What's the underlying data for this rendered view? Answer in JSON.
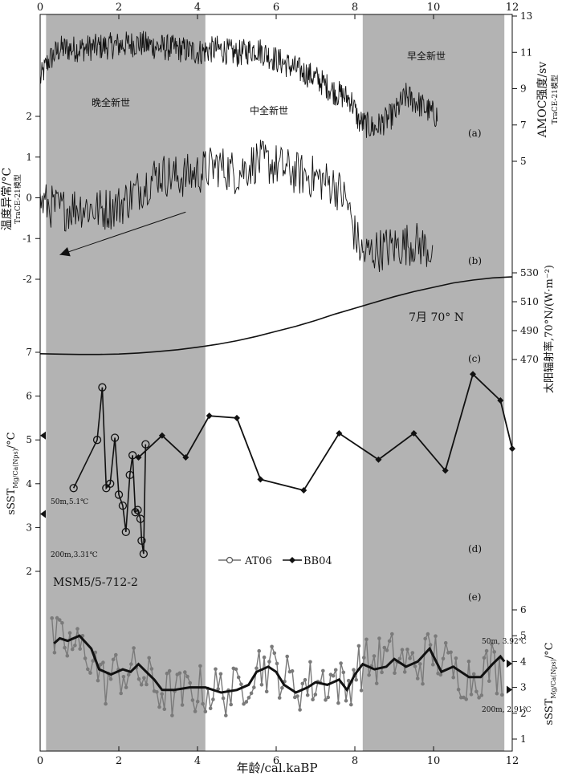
{
  "chart_data": {
    "type": "line",
    "x_axis": {
      "label": "年龄/cal.kaBP",
      "range": [
        0,
        12
      ],
      "ticks": [
        "0",
        "2",
        "4",
        "6",
        "8",
        "10",
        "12"
      ]
    },
    "periods": [
      {
        "label": "晚全新世",
        "range": [
          0.15,
          4.2
        ],
        "shaded": true
      },
      {
        "label": "中全新世",
        "range": [
          4.2,
          8.2
        ],
        "shaded": false
      },
      {
        "label": "早全新世",
        "range": [
          8.2,
          11.8
        ],
        "shaded": true
      }
    ],
    "panels": [
      {
        "id": "a",
        "tag": "(a)",
        "axis_side": "right",
        "ylabel": "AMOC强度/sv",
        "ylabel_sub": "TraCE-21模型",
        "ylim": [
          5,
          13
        ],
        "yticks": [
          "5",
          "7",
          "9",
          "11",
          "13"
        ],
        "series": [
          {
            "name": "",
            "anchors": [
              [
                0,
                9.5
              ],
              [
                0.2,
                10.5
              ],
              [
                0.5,
                11.2
              ],
              [
                1,
                11.2
              ],
              [
                1.5,
                11.3
              ],
              [
                2,
                11.4
              ],
              [
                2.5,
                11.5
              ],
              [
                3,
                11.3
              ],
              [
                3.5,
                11.2
              ],
              [
                4,
                11.0
              ],
              [
                4.5,
                11.2
              ],
              [
                5,
                10.9
              ],
              [
                5.5,
                11.2
              ],
              [
                6,
                10.6
              ],
              [
                6.5,
                10.1
              ],
              [
                7,
                9.6
              ],
              [
                7.5,
                8.8
              ],
              [
                7.9,
                8.4
              ],
              [
                8.1,
                7.2
              ],
              [
                8.5,
                6.8
              ],
              [
                9,
                7.6
              ],
              [
                9.3,
                8.6
              ],
              [
                9.6,
                8.2
              ],
              [
                10,
                7.6
              ],
              [
                10.1,
                7.5
              ]
            ]
          }
        ]
      },
      {
        "id": "b",
        "tag": "(b)",
        "axis_side": "left",
        "ylabel": "温度异常/°C",
        "ylabel_sub": "TraCE-21模型",
        "ylim": [
          -2,
          2
        ],
        "yticks": [
          "-2",
          "-1",
          "0",
          "1",
          "2"
        ],
        "series": [
          {
            "name": "",
            "anchors": [
              [
                0,
                -0.1
              ],
              [
                0.5,
                -0.3
              ],
              [
                1,
                -0.2
              ],
              [
                1.5,
                -0.3
              ],
              [
                2,
                -0.2
              ],
              [
                2.5,
                0.2
              ],
              [
                3,
                0.6
              ],
              [
                3.5,
                0.5
              ],
              [
                4,
                0.6
              ],
              [
                4.5,
                0.8
              ],
              [
                5,
                0.6
              ],
              [
                5.5,
                0.9
              ],
              [
                6,
                0.8
              ],
              [
                6.5,
                0.6
              ],
              [
                7,
                0.5
              ],
              [
                7.5,
                0.3
              ],
              [
                7.8,
                -0.1
              ],
              [
                8.0,
                -0.9
              ],
              [
                8.2,
                -1.4
              ],
              [
                8.5,
                -1.3
              ],
              [
                9,
                -1.2
              ],
              [
                9.5,
                -1.1
              ],
              [
                10,
                -1.3
              ]
            ]
          }
        ],
        "trend_arrow": [
          [
            3.7,
            -0.35
          ],
          [
            0.5,
            -1.4
          ]
        ]
      },
      {
        "id": "c",
        "tag": "(c)",
        "axis_side": "right",
        "ylabel": "太阳辐射率,70°N/(W·m⁻²)",
        "annotation": "7月 70° N",
        "ylim": [
          470,
          530
        ],
        "yticks": [
          "470",
          "490",
          "510",
          "530"
        ],
        "series": [
          {
            "name": "",
            "points": [
              [
                0,
                474
              ],
              [
                0.5,
                473.7
              ],
              [
                1,
                473.5
              ],
              [
                1.5,
                473.5
              ],
              [
                2,
                473.8
              ],
              [
                2.5,
                474.5
              ],
              [
                3,
                475.5
              ],
              [
                3.5,
                476.8
              ],
              [
                4,
                478.5
              ],
              [
                4.5,
                480.5
              ],
              [
                5,
                483
              ],
              [
                5.5,
                486
              ],
              [
                6,
                489.5
              ],
              [
                6.5,
                493
              ],
              [
                7,
                497
              ],
              [
                7.5,
                501.5
              ],
              [
                8,
                505.5
              ],
              [
                8.5,
                509.5
              ],
              [
                9,
                513.5
              ],
              [
                9.5,
                517
              ],
              [
                10,
                520
              ],
              [
                10.5,
                523
              ],
              [
                11,
                525
              ],
              [
                11.5,
                526.5
              ],
              [
                12,
                527.2
              ]
            ]
          }
        ]
      },
      {
        "id": "d",
        "tag": "(d)",
        "axis_side": "left",
        "ylabel": "sSST",
        "ylabel_sub": "Mg/Ca(Nps)",
        "ylabel_unit": "/°C",
        "ylim": [
          2,
          7
        ],
        "yticks": [
          "2",
          "3",
          "4",
          "5",
          "6",
          "7"
        ],
        "markers": [
          {
            "label": "50m,5.1℃",
            "value": 5.1
          },
          {
            "label": "200m,3.31℃",
            "value": 3.31
          }
        ],
        "series": [
          {
            "name": "AT06",
            "marker": "circle",
            "points": [
              [
                0.85,
                3.9
              ],
              [
                1.45,
                5.0
              ],
              [
                1.58,
                6.2
              ],
              [
                1.68,
                3.9
              ],
              [
                1.78,
                4.0
              ],
              [
                1.9,
                5.05
              ],
              [
                2.0,
                3.75
              ],
              [
                2.1,
                3.5
              ],
              [
                2.18,
                2.9
              ],
              [
                2.28,
                4.2
              ],
              [
                2.35,
                4.65
              ],
              [
                2.42,
                3.35
              ],
              [
                2.48,
                3.4
              ],
              [
                2.55,
                3.2
              ],
              [
                2.58,
                2.7
              ],
              [
                2.63,
                2.4
              ],
              [
                2.68,
                4.9
              ]
            ]
          },
          {
            "name": "BB04",
            "marker": "diamond",
            "points": [
              [
                2.5,
                4.6
              ],
              [
                3.1,
                5.1
              ],
              [
                3.7,
                4.6
              ],
              [
                4.3,
                5.55
              ],
              [
                5.0,
                5.5
              ],
              [
                5.6,
                4.1
              ],
              [
                6.7,
                3.85
              ],
              [
                7.6,
                5.15
              ],
              [
                8.6,
                4.55
              ],
              [
                9.5,
                5.15
              ],
              [
                10.3,
                4.3
              ],
              [
                11.0,
                6.5
              ],
              [
                11.7,
                5.9
              ],
              [
                12,
                4.8
              ]
            ]
          }
        ]
      },
      {
        "id": "e",
        "tag": "(e)",
        "axis_side": "right",
        "title": "MSM5/5-712-2",
        "ylabel": "sSST",
        "ylabel_sub": "Mg/Ca(Nps)",
        "ylabel_unit": "/°C",
        "ylim": [
          1,
          6
        ],
        "yticks": [
          "1",
          "2",
          "3",
          "4",
          "5",
          "6"
        ],
        "markers": [
          {
            "label": "50m, 3.92℃",
            "value": 3.92
          },
          {
            "label": "200m, 2.91℃",
            "value": 2.91
          }
        ],
        "series": [
          {
            "name": "",
            "kind": "raw",
            "anchors": [
              [
                0.3,
                4.8
              ],
              [
                0.8,
                4.6
              ],
              [
                1.3,
                4.3
              ],
              [
                1.6,
                3.2
              ],
              [
                2.0,
                3.6
              ],
              [
                2.5,
                3.6
              ],
              [
                3.0,
                2.9
              ],
              [
                3.5,
                2.7
              ],
              [
                4.0,
                2.9
              ],
              [
                4.5,
                2.9
              ],
              [
                5.0,
                2.8
              ],
              [
                5.5,
                3.9
              ],
              [
                6.0,
                3.7
              ],
              [
                6.5,
                3.0
              ],
              [
                7.0,
                3.2
              ],
              [
                7.5,
                3.4
              ],
              [
                7.8,
                2.8
              ],
              [
                8.0,
                3.8
              ],
              [
                8.5,
                4.0
              ],
              [
                9.0,
                4.2
              ],
              [
                9.5,
                3.8
              ],
              [
                10.0,
                4.4
              ],
              [
                10.5,
                3.6
              ],
              [
                11.0,
                3.4
              ],
              [
                11.5,
                3.9
              ],
              [
                11.8,
                3.3
              ]
            ]
          },
          {
            "name": "",
            "kind": "smoothed",
            "points": [
              [
                0.35,
                4.7
              ],
              [
                0.5,
                4.9
              ],
              [
                0.7,
                4.8
              ],
              [
                1.0,
                5.0
              ],
              [
                1.3,
                4.5
              ],
              [
                1.5,
                3.7
              ],
              [
                1.8,
                3.5
              ],
              [
                2.1,
                3.7
              ],
              [
                2.3,
                3.6
              ],
              [
                2.5,
                3.9
              ],
              [
                2.7,
                3.6
              ],
              [
                2.9,
                3.3
              ],
              [
                3.1,
                2.9
              ],
              [
                3.4,
                2.9
              ],
              [
                3.8,
                3.0
              ],
              [
                4.2,
                3.0
              ],
              [
                4.6,
                2.8
              ],
              [
                5.0,
                2.9
              ],
              [
                5.3,
                3.1
              ],
              [
                5.5,
                3.6
              ],
              [
                5.8,
                3.8
              ],
              [
                6.0,
                3.6
              ],
              [
                6.2,
                3.1
              ],
              [
                6.5,
                2.8
              ],
              [
                6.8,
                3.0
              ],
              [
                7.0,
                3.2
              ],
              [
                7.3,
                3.1
              ],
              [
                7.6,
                3.3
              ],
              [
                7.8,
                2.9
              ],
              [
                8.0,
                3.5
              ],
              [
                8.2,
                3.9
              ],
              [
                8.5,
                3.7
              ],
              [
                8.8,
                3.8
              ],
              [
                9.0,
                4.1
              ],
              [
                9.3,
                3.8
              ],
              [
                9.6,
                4.0
              ],
              [
                9.9,
                4.5
              ],
              [
                10.2,
                3.6
              ],
              [
                10.5,
                3.8
              ],
              [
                10.9,
                3.4
              ],
              [
                11.2,
                3.4
              ],
              [
                11.5,
                3.9
              ],
              [
                11.7,
                4.2
              ],
              [
                11.8,
                4.0
              ]
            ]
          }
        ]
      }
    ],
    "legend": {
      "position": "inside-bottom",
      "entries": [
        "AT06",
        "BB04"
      ]
    }
  }
}
